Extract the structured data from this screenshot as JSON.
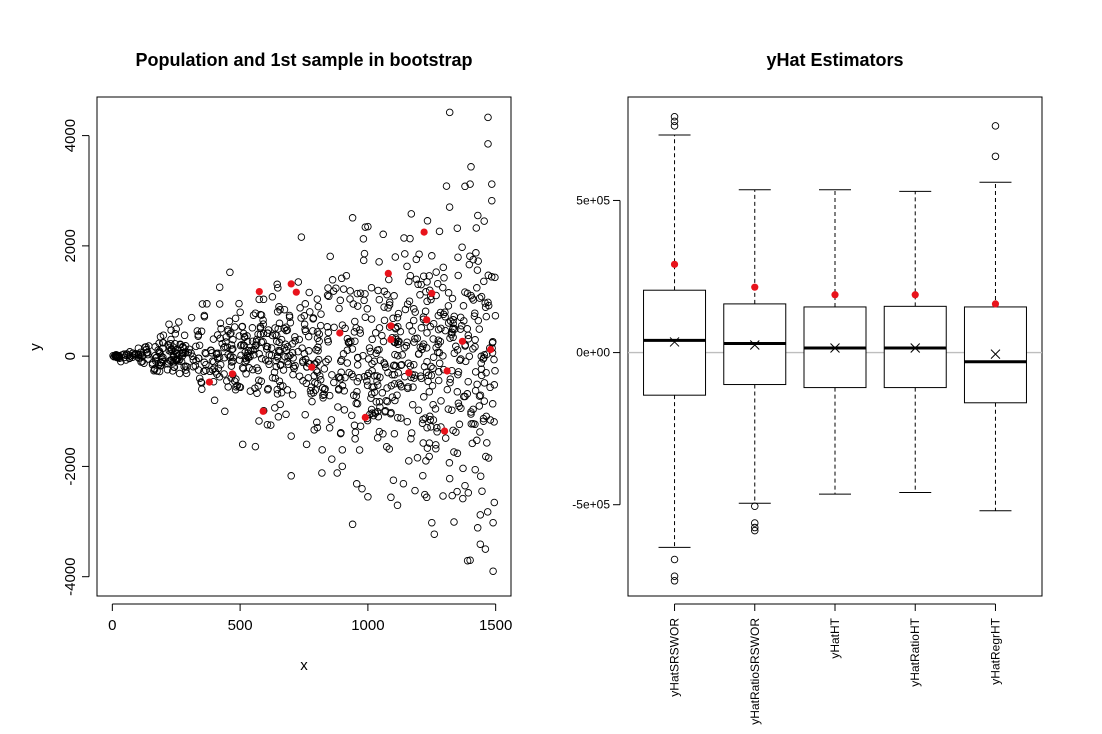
{
  "chart_data": [
    {
      "type": "scatter",
      "title": "Population and 1st sample in bootstrap",
      "xlabel": "x",
      "ylabel": "y",
      "xlim": [
        -60,
        1560
      ],
      "ylim": [
        -4350,
        4700
      ],
      "xticks": [
        0,
        500,
        1000,
        1500
      ],
      "yticks": [
        -4000,
        -2000,
        0,
        2000,
        4000
      ],
      "grid": false,
      "population": {
        "name": "",
        "description_points_count": 1000,
        "marker": "open-circle",
        "color": "#000000",
        "points": [
          [
            1320,
            4420
          ],
          [
            1470,
            4330
          ],
          [
            1470,
            3850
          ],
          [
            1380,
            3080
          ],
          [
            1400,
            3120
          ],
          [
            1485,
            3120
          ],
          [
            1485,
            2820
          ],
          [
            1430,
            2550
          ],
          [
            1455,
            2450
          ],
          [
            1350,
            2320
          ],
          [
            940,
            2510
          ],
          [
            990,
            2340
          ],
          [
            1060,
            2210
          ],
          [
            1170,
            2580
          ],
          [
            1000,
            2350
          ],
          [
            740,
            2160
          ],
          [
            700,
            -2170
          ],
          [
            940,
            -3050
          ],
          [
            1000,
            -2550
          ],
          [
            1090,
            -2560
          ],
          [
            1250,
            -3020
          ],
          [
            1260,
            -3230
          ],
          [
            1230,
            -2560
          ],
          [
            1390,
            -3710
          ],
          [
            1400,
            -3700
          ],
          [
            1440,
            -3410
          ],
          [
            1460,
            -3500
          ],
          [
            1490,
            -3900
          ],
          [
            1490,
            -3020
          ],
          [
            1440,
            -2880
          ],
          [
            1380,
            -2350
          ],
          [
            1420,
            -2060
          ],
          [
            1330,
            -2530
          ],
          [
            1320,
            -2220
          ],
          [
            1100,
            -2250
          ],
          [
            1240,
            -1820
          ],
          [
            880,
            -2120
          ],
          [
            820,
            -2120
          ],
          [
            900,
            -2000
          ],
          [
            1160,
            -1900
          ],
          [
            460,
            1520
          ],
          [
            420,
            1250
          ],
          [
            370,
            950
          ],
          [
            310,
            700
          ],
          [
            260,
            620
          ],
          [
            230,
            470
          ],
          [
            200,
            380
          ],
          [
            350,
            -600
          ],
          [
            400,
            -800
          ],
          [
            440,
            -1000
          ],
          [
            510,
            -1600
          ],
          [
            560,
            -1640
          ],
          [
            620,
            -1250
          ],
          [
            650,
            -1100
          ],
          [
            700,
            -1450
          ],
          [
            760,
            -1600
          ],
          [
            800,
            -1200
          ],
          [
            850,
            -1300
          ],
          [
            900,
            -1700
          ],
          [
            950,
            -1500
          ]
        ]
      },
      "sample": {
        "name": "",
        "marker": "filled-circle",
        "color": "#e8131b",
        "points": [
          [
            380,
            -470
          ],
          [
            470,
            -320
          ],
          [
            575,
            1170
          ],
          [
            590,
            -1000
          ],
          [
            700,
            1310
          ],
          [
            720,
            1160
          ],
          [
            780,
            -200
          ],
          [
            890,
            420
          ],
          [
            990,
            -1110
          ],
          [
            1080,
            1500
          ],
          [
            1090,
            550
          ],
          [
            1090,
            300
          ],
          [
            1160,
            -300
          ],
          [
            1220,
            2250
          ],
          [
            1230,
            660
          ],
          [
            1250,
            1140
          ],
          [
            1300,
            -1360
          ],
          [
            1310,
            -270
          ],
          [
            1370,
            270
          ],
          [
            1480,
            120
          ]
        ]
      }
    },
    {
      "type": "box",
      "title": "yHat Estimators",
      "categories": [
        "yHatSRSWOR",
        "yHatRatioSRSWOR",
        "yHatHT",
        "yHatRatioHT",
        "yHatRegrHT"
      ],
      "ylim": [
        -800000,
        840000
      ],
      "yticks": [
        -500000,
        0,
        500000
      ],
      "ytick_labels": [
        "-5e+05",
        "0e+00",
        "5e+05"
      ],
      "reference_line": 0,
      "reference_line_color": "#bebebe",
      "sample_marker_color": "#e8131b",
      "boxes": [
        {
          "whisker_low": -640000,
          "q1": -140000,
          "median": 40000,
          "q3": 205000,
          "whisker_high": 715000,
          "mean": 35000,
          "red_point": 290000,
          "outliers": [
            745000,
            760000,
            775000,
            -680000,
            -735000,
            -750000
          ]
        },
        {
          "whisker_low": -495000,
          "q1": -105000,
          "median": 30000,
          "q3": 160000,
          "whisker_high": 535000,
          "mean": 25000,
          "red_point": 215000,
          "outliers": [
            -505000,
            -560000,
            -575000,
            -585000
          ]
        },
        {
          "whisker_low": -465000,
          "q1": -115000,
          "median": 15000,
          "q3": 150000,
          "whisker_high": 535000,
          "mean": 15000,
          "red_point": 190000,
          "outliers": []
        },
        {
          "whisker_low": -460000,
          "q1": -115000,
          "median": 15000,
          "q3": 152000,
          "whisker_high": 530000,
          "mean": 15000,
          "red_point": 190000,
          "outliers": []
        },
        {
          "whisker_low": -520000,
          "q1": -165000,
          "median": -30000,
          "q3": 150000,
          "whisker_high": 560000,
          "mean": -5000,
          "red_point": 160000,
          "outliers": [
            645000,
            745000
          ]
        }
      ]
    }
  ]
}
